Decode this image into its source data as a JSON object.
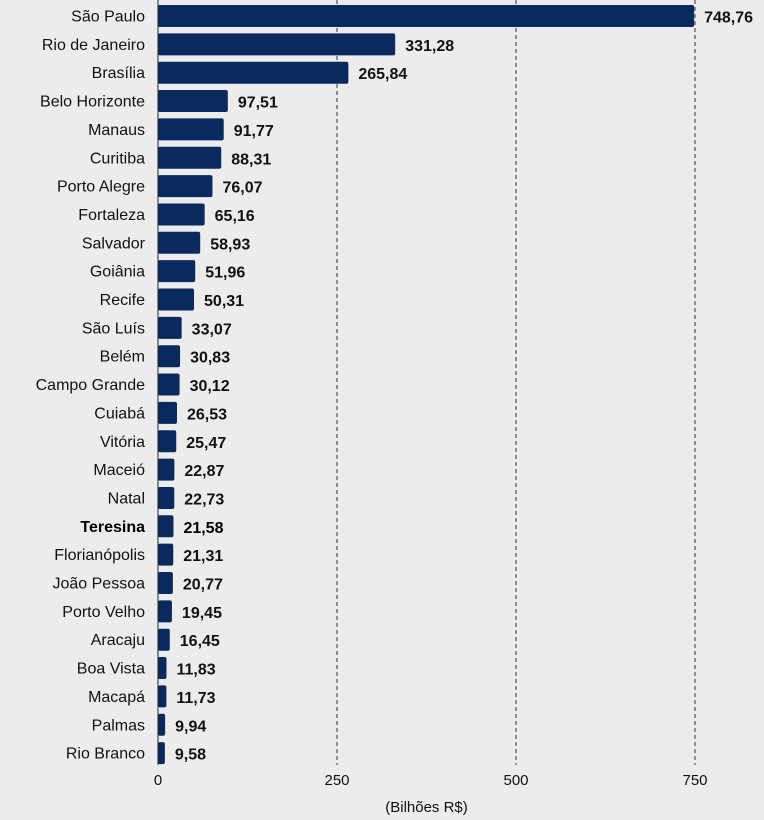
{
  "chart_data": {
    "type": "bar",
    "orientation": "horizontal",
    "categories": [
      "São Paulo",
      "Rio de Janeiro",
      "Brasília",
      "Belo Horizonte",
      "Manaus",
      "Curitiba",
      "Porto Alegre",
      "Fortaleza",
      "Salvador",
      "Goiânia",
      "Recife",
      "São Luís",
      "Belém",
      "Campo Grande",
      "Cuiabá",
      "Vitória",
      "Maceió",
      "Natal",
      "Teresina",
      "Florianópolis",
      "João Pessoa",
      "Porto Velho",
      "Aracaju",
      "Boa Vista",
      "Macapá",
      "Palmas",
      "Rio Branco"
    ],
    "values": [
      748.76,
      331.28,
      265.84,
      97.51,
      91.77,
      88.31,
      76.07,
      65.16,
      58.93,
      51.96,
      50.31,
      33.07,
      30.83,
      30.12,
      26.53,
      25.47,
      22.87,
      22.73,
      21.58,
      21.31,
      20.77,
      19.45,
      16.45,
      11.83,
      11.73,
      9.94,
      9.58
    ],
    "value_labels": [
      "748,76",
      "331,28",
      "265,84",
      "97,51",
      "91,77",
      "88,31",
      "76,07",
      "65,16",
      "58,93",
      "51,96",
      "50,31",
      "33,07",
      "30,83",
      "30,12",
      "26,53",
      "25,47",
      "22,87",
      "22,73",
      "21,58",
      "21,31",
      "20,77",
      "19,45",
      "16,45",
      "11,83",
      "11,73",
      "9,94",
      "9,58"
    ],
    "highlighted_category": "Teresina",
    "xlabel": "(Bilhões R$)",
    "ylabel": "",
    "xlim": [
      0,
      750
    ],
    "xticks": [
      0,
      250,
      500,
      750
    ],
    "grid": "vertical dashed lines at 250, 500, 750",
    "legend": "none",
    "colors": {
      "bar": "#0a2a5e",
      "background": "#ececec",
      "text": "#111111",
      "grid": "#333333"
    }
  }
}
